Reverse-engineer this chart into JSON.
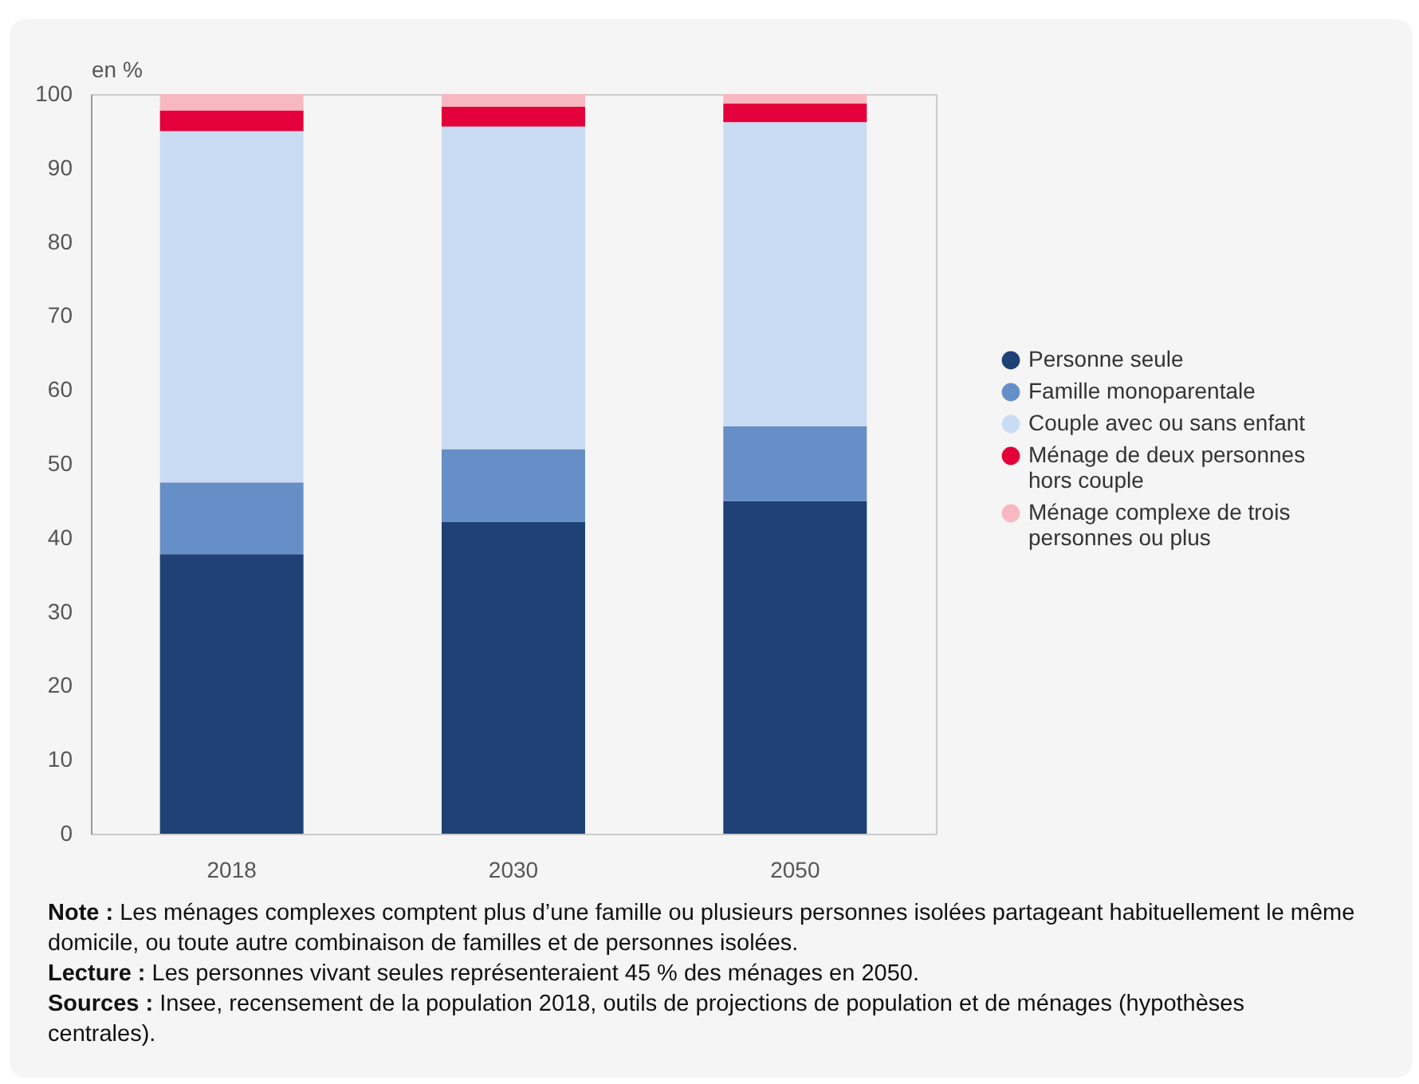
{
  "chart_data": {
    "type": "bar",
    "stacked": true,
    "ylabel": "en %",
    "categories": [
      "2018",
      "2030",
      "2050"
    ],
    "series": [
      {
        "name": "Personne seule",
        "color": "#1f4176",
        "values": [
          37.8,
          42.2,
          45
        ]
      },
      {
        "name": "Famille monoparentale",
        "color": "#668fc7",
        "values": [
          9.7,
          9.8,
          10.1
        ]
      },
      {
        "name": "Couple avec ou sans enfant",
        "color": "#cadcf3",
        "values": [
          47.5,
          43.6,
          41.1
        ]
      },
      {
        "name": "Ménage de deux personnes hors couple",
        "color": "#e4003a",
        "values": [
          2.8,
          2.7,
          2.5
        ]
      },
      {
        "name": "Ménage complexe de trois personnes ou plus",
        "color": "#f7b8c1",
        "values": [
          2.2,
          1.7,
          1.3
        ]
      }
    ],
    "ylim": [
      0,
      100
    ],
    "yticks": [
      0,
      10,
      20,
      30,
      40,
      50,
      60,
      70,
      80,
      90,
      100
    ],
    "grid": false,
    "legend": "right",
    "annotations": [
      "Note : Les ménages complexes comptent plus d’une famille ou plusieurs personnes isolées partageant habituellement le même domicile, ou toute autre combinaison de familles et de personnes isolées.",
      "Lecture : Les personnes vivant seules représenteraient 45 % des ménages en 2050.",
      "Sources : Insee, recensement de la population 2018, outils de projections de population et de ménages (hypothèses centrales)."
    ]
  }
}
